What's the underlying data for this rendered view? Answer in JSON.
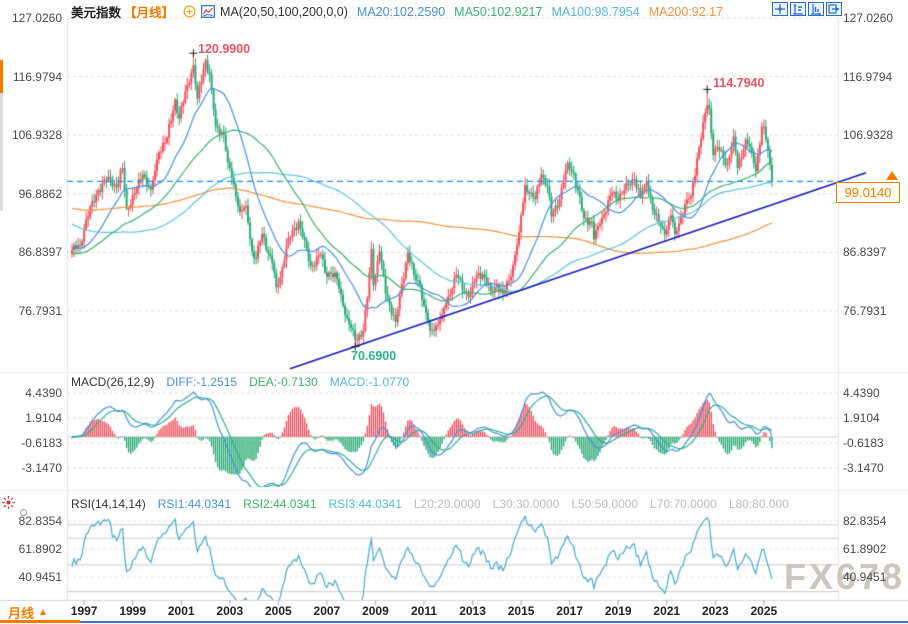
{
  "header": {
    "symbol": "美元指数",
    "period_tag": "【月线】",
    "ma_label": "MA(20,50,100,200,0,0)",
    "ma20": "MA20:102.2590",
    "ma50": "MA50:102.9217",
    "ma100": "MA100:98.7954",
    "ma200": "MA200:92.17"
  },
  "toolbar": {
    "icons": [
      "crosshair-move",
      "fit-price-axis",
      "fit-time-axis",
      "go-to-latest"
    ]
  },
  "main_chart": {
    "axis_labels": [
      "127.0260",
      "116.9794",
      "106.9328",
      "96.8862",
      "86.8397",
      "76.7931"
    ],
    "annotations": {
      "high1": "120.9900",
      "high2": "114.7940",
      "low": "70.6900"
    },
    "price_label": "99.0140"
  },
  "macd_panel": {
    "title": "MACD(26,12,9)",
    "diff": "DIFF:-1.2515",
    "dea": "DEA:-0.7130",
    "macd": "MACD:-1.0770",
    "axis_labels": [
      "4.4390",
      "1.9104",
      "-0.6183",
      "-3.1470"
    ]
  },
  "rsi_panel": {
    "title": "RSI(14,14,14)",
    "rsi1": "RSI1:44.0341",
    "rsi2": "RSI2:44.0341",
    "rsi3": "RSI3:44.0341",
    "levels": [
      "L20:20.0000",
      "L30:30.0000",
      "L50:50.0000",
      "L70:70.0000",
      "L80:80.000"
    ],
    "axis_labels": [
      "82.8354",
      "61.8902",
      "40.9451"
    ]
  },
  "footer": {
    "tab_label": "月线",
    "tab_arrow": "▲",
    "years": [
      "1997",
      "1999",
      "2001",
      "2003",
      "2005",
      "2007",
      "2009",
      "2011",
      "2013",
      "2015",
      "2017",
      "2019",
      "2021",
      "2023",
      "2025"
    ]
  },
  "watermark": "FX678",
  "colors": {
    "accent_orange": "#f57c00",
    "ma20_blue": "#4a90e2",
    "ma50_green": "#3cb371",
    "ma100_cyan": "#5fc3dd",
    "ma200_orange": "#f5923e",
    "candle_up_red": "#ef5362",
    "candle_down_green": "#2aab76",
    "trendline_navy": "#1717c9",
    "price_line_blue": "#1e90ff",
    "diff_blue": "#4a90e2",
    "dea_teal": "#2fae96",
    "rsi_cyan": "#4aa9cd",
    "grid": "#dedede",
    "level_gray": "#cccccc",
    "annotation_red": "#ef5362",
    "annotation_green": "#2bb38a"
  },
  "chart_data": {
    "type": "candlestick",
    "title": "美元指数 月线 (US Dollar Index, Monthly)",
    "x_start": "1996-07",
    "x_end": "2025-05",
    "price_axis": [
      127.026,
      116.9794,
      106.9328,
      96.8862,
      86.8397,
      76.7931
    ],
    "last_close": 99.014,
    "high_annotations": [
      {
        "date": "2001-07",
        "price": 120.99
      },
      {
        "date": "2022-09",
        "price": 114.794
      }
    ],
    "low_annotation": {
      "date": "2008-03",
      "price": 70.69
    },
    "monthly_close_anchors": [
      [
        "1996-07",
        87.2
      ],
      [
        "1996-11",
        88.0
      ],
      [
        "1997-02",
        92.5
      ],
      [
        "1997-08",
        97.5
      ],
      [
        "1998-01",
        99.8
      ],
      [
        "1998-05",
        98.0
      ],
      [
        "1998-08",
        101.3
      ],
      [
        "1998-10",
        94.3
      ],
      [
        "1999-02",
        97.0
      ],
      [
        "1999-06",
        100.2
      ],
      [
        "1999-10",
        97.6
      ],
      [
        "2000-02",
        104.0
      ],
      [
        "2000-06",
        106.5
      ],
      [
        "2000-10",
        113.0
      ],
      [
        "2000-12",
        109.8
      ],
      [
        "2001-04",
        115.5
      ],
      [
        "2001-07",
        118.9
      ],
      [
        "2001-09",
        113.2
      ],
      [
        "2002-01",
        119.8
      ],
      [
        "2002-03",
        117.3
      ],
      [
        "2002-06",
        108.5
      ],
      [
        "2002-10",
        107.0
      ],
      [
        "2002-12",
        102.3
      ],
      [
        "2003-03",
        98.5
      ],
      [
        "2003-06",
        93.8
      ],
      [
        "2003-09",
        94.8
      ],
      [
        "2003-12",
        87.0
      ],
      [
        "2004-02",
        85.8
      ],
      [
        "2004-05",
        90.0
      ],
      [
        "2004-10",
        85.0
      ],
      [
        "2004-12",
        80.9
      ],
      [
        "2005-02",
        82.5
      ],
      [
        "2005-05",
        88.0
      ],
      [
        "2005-07",
        89.5
      ],
      [
        "2005-11",
        92.2
      ],
      [
        "2006-01",
        89.5
      ],
      [
        "2006-05",
        84.5
      ],
      [
        "2006-10",
        86.5
      ],
      [
        "2006-12",
        83.4
      ],
      [
        "2007-03",
        83.2
      ],
      [
        "2007-06",
        82.3
      ],
      [
        "2007-09",
        77.7
      ],
      [
        "2007-11",
        75.6
      ],
      [
        "2008-03",
        71.8
      ],
      [
        "2008-07",
        73.4
      ],
      [
        "2008-09",
        79.0
      ],
      [
        "2008-11",
        87.4
      ],
      [
        "2008-12",
        81.2
      ],
      [
        "2009-03",
        87.0
      ],
      [
        "2009-06",
        79.8
      ],
      [
        "2009-11",
        74.9
      ],
      [
        "2010-01",
        79.5
      ],
      [
        "2010-05",
        86.8
      ],
      [
        "2010-08",
        83.0
      ],
      [
        "2010-11",
        81.2
      ],
      [
        "2011-01",
        77.7
      ],
      [
        "2011-04",
        73.5
      ],
      [
        "2011-07",
        74.3
      ],
      [
        "2011-10",
        76.2
      ],
      [
        "2012-01",
        79.3
      ],
      [
        "2012-05",
        83.0
      ],
      [
        "2012-09",
        79.9
      ],
      [
        "2012-12",
        79.8
      ],
      [
        "2013-03",
        83.0
      ],
      [
        "2013-06",
        83.1
      ],
      [
        "2013-10",
        80.2
      ],
      [
        "2014-01",
        81.3
      ],
      [
        "2014-04",
        79.8
      ],
      [
        "2014-08",
        82.7
      ],
      [
        "2014-12",
        90.3
      ],
      [
        "2015-03",
        98.4
      ],
      [
        "2015-05",
        96.9
      ],
      [
        "2015-08",
        96.0
      ],
      [
        "2015-11",
        100.2
      ],
      [
        "2016-02",
        98.2
      ],
      [
        "2016-04",
        93.0
      ],
      [
        "2016-08",
        96.0
      ],
      [
        "2016-12",
        102.2
      ],
      [
        "2017-03",
        100.3
      ],
      [
        "2017-08",
        92.7
      ],
      [
        "2017-12",
        92.1
      ],
      [
        "2018-01",
        89.1
      ],
      [
        "2018-04",
        91.8
      ],
      [
        "2018-10",
        97.1
      ],
      [
        "2018-12",
        96.1
      ],
      [
        "2019-04",
        97.5
      ],
      [
        "2019-09",
        99.4
      ],
      [
        "2019-12",
        96.4
      ],
      [
        "2020-02",
        98.1
      ],
      [
        "2020-03",
        99.0
      ],
      [
        "2020-07",
        93.3
      ],
      [
        "2020-12",
        89.9
      ],
      [
        "2021-03",
        93.2
      ],
      [
        "2021-05",
        90.0
      ],
      [
        "2021-11",
        95.9
      ],
      [
        "2022-01",
        96.5
      ],
      [
        "2022-04",
        103.0
      ],
      [
        "2022-09",
        112.1
      ],
      [
        "2022-10",
        111.5
      ],
      [
        "2022-12",
        103.5
      ],
      [
        "2023-02",
        104.9
      ],
      [
        "2023-07",
        101.9
      ],
      [
        "2023-10",
        106.7
      ],
      [
        "2023-12",
        101.3
      ],
      [
        "2024-04",
        106.2
      ],
      [
        "2024-07",
        104.1
      ],
      [
        "2024-09",
        100.8
      ],
      [
        "2024-12",
        108.4
      ],
      [
        "2025-01",
        108.4
      ],
      [
        "2025-03",
        104.2
      ],
      [
        "2025-05",
        99.014
      ]
    ],
    "pre_history_anchors": [
      [
        -120,
        110
      ],
      [
        -70,
        96
      ],
      [
        -40,
        84
      ],
      [
        -20,
        88
      ]
    ],
    "pinned_extremes": {
      "2001-07": {
        "high": 120.99
      },
      "2022-09": {
        "high": 114.794
      },
      "2008-03": {
        "low": 70.69
      }
    },
    "moving_average_periods": [
      20,
      50,
      100,
      200
    ],
    "ma_latest": {
      "ma20": 102.259,
      "ma50": 102.9217,
      "ma100": 98.7954,
      "ma200": 92.17
    },
    "macd": {
      "slow": 26,
      "fast": 12,
      "signal": 9,
      "latest_diff": -1.2515,
      "latest_dea": -0.713,
      "latest_macd": -1.077,
      "axis": [
        4.439,
        1.9104,
        -0.6183,
        -3.147
      ]
    },
    "rsi": {
      "periods": [
        14,
        14,
        14
      ],
      "latest": [
        44.0341,
        44.0341,
        44.0341
      ],
      "levels": [
        20,
        30,
        50,
        70,
        80
      ],
      "axis": [
        82.8354,
        61.8902,
        40.9451
      ]
    },
    "trendline": {
      "from": {
        "date": "2008-03",
        "price": 70.69
      },
      "to": {
        "date": "2025-05",
        "price": 95.0
      },
      "extended_right": true
    },
    "x_tick_years": [
      1997,
      1999,
      2001,
      2003,
      2005,
      2007,
      2009,
      2011,
      2013,
      2015,
      2017,
      2019,
      2021,
      2023,
      2025
    ]
  }
}
